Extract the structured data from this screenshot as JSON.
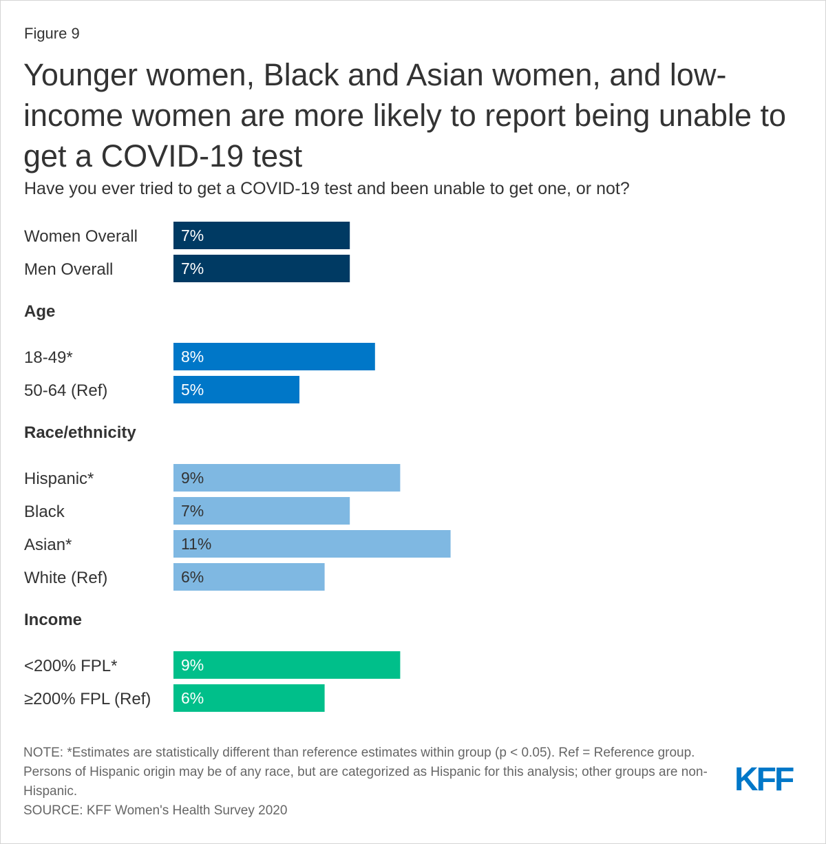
{
  "figure_label": "Figure 9",
  "logo_text": "KFF",
  "chart_data": {
    "type": "bar",
    "orientation": "horizontal",
    "title": "Younger women, Black and Asian women, and low-income women are more likely to report being unable to get a COVID-19 test",
    "subtitle": "Have you ever tried to get a COVID-19 test and been unable to get one, or not?",
    "value_format": "percent",
    "groups": [
      {
        "heading": "",
        "color": "#003a63",
        "label_color": "#ffffff",
        "bars": [
          {
            "category": "Women Overall",
            "value": 7
          },
          {
            "category": "Men Overall",
            "value": 7
          }
        ]
      },
      {
        "heading": "Age",
        "color": "#0077c8",
        "label_color": "#ffffff",
        "bars": [
          {
            "category": "18-49*",
            "value": 8
          },
          {
            "category": "50-64 (Ref)",
            "value": 5
          }
        ]
      },
      {
        "heading": "Race/ethnicity",
        "color": "#7fb8e2",
        "label_color": "#333333",
        "bars": [
          {
            "category": "Hispanic*",
            "value": 9
          },
          {
            "category": "Black",
            "value": 7
          },
          {
            "category": "Asian*",
            "value": 11
          },
          {
            "category": "White (Ref)",
            "value": 6
          }
        ]
      },
      {
        "heading": "Income",
        "color": "#00bf8a",
        "label_color": "#ffffff",
        "bars": [
          {
            "category": "<200% FPL*",
            "value": 9
          },
          {
            "category": "≥200% FPL (Ref)",
            "value": 6
          }
        ]
      }
    ],
    "note": "NOTE: *Estimates are statistically different than reference estimates within group (p < 0.05). Ref = Reference group. Persons of Hispanic origin may be of any race, but are categorized as Hispanic for this analysis; other groups are non-Hispanic.",
    "source": "SOURCE: KFF Women's Health Survey 2020"
  }
}
